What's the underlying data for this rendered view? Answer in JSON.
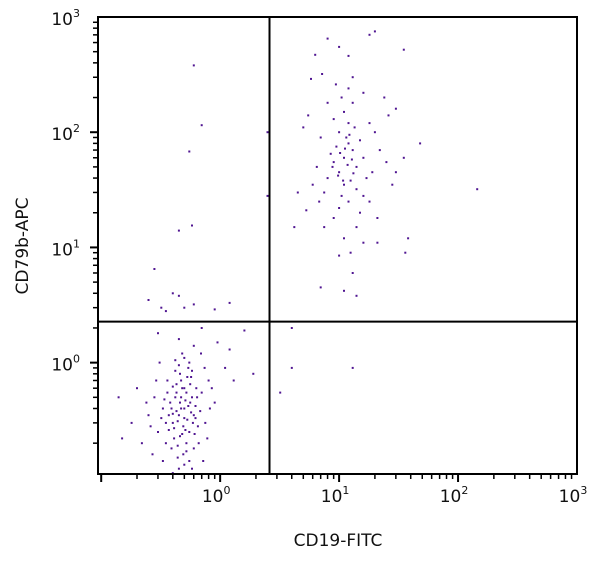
{
  "chart_data": {
    "type": "scatter",
    "title": "",
    "xlabel": "CD19-FITC",
    "ylabel": "CD79b-APC",
    "xscale": "log",
    "yscale": "log",
    "xlim": [
      0.094,
      1000
    ],
    "ylim": [
      0.108,
      1000
    ],
    "grid": false,
    "legend": "none",
    "point_color": "#4f1591",
    "x_ticks": [
      {
        "value": 1,
        "base": "10",
        "exp": "0"
      },
      {
        "value": 10,
        "base": "10",
        "exp": "1"
      },
      {
        "value": 100,
        "base": "10",
        "exp": "2"
      },
      {
        "value": 1000,
        "base": "10",
        "exp": "3"
      }
    ],
    "y_ticks": [
      {
        "value": 1,
        "base": "10",
        "exp": "0"
      },
      {
        "value": 10,
        "base": "10",
        "exp": "1"
      },
      {
        "value": 100,
        "base": "10",
        "exp": "2"
      },
      {
        "value": 1000,
        "base": "10",
        "exp": "3"
      }
    ],
    "quadrant_gates": {
      "x": 2.6,
      "y": 2.27
    },
    "points": [
      [
        0.45,
        0.35
      ],
      [
        0.5,
        0.4
      ],
      [
        0.4,
        0.3
      ],
      [
        0.55,
        0.25
      ],
      [
        0.42,
        0.5
      ],
      [
        0.48,
        0.6
      ],
      [
        0.38,
        0.45
      ],
      [
        0.6,
        0.35
      ],
      [
        0.52,
        0.2
      ],
      [
        0.44,
        0.15
      ],
      [
        0.35,
        0.3
      ],
      [
        0.58,
        0.5
      ],
      [
        0.47,
        0.7
      ],
      [
        0.41,
        0.22
      ],
      [
        0.53,
        0.32
      ],
      [
        0.62,
        0.42
      ],
      [
        0.36,
        0.55
      ],
      [
        0.49,
        0.28
      ],
      [
        0.56,
        0.65
      ],
      [
        0.43,
        0.38
      ],
      [
        0.5,
        0.13
      ],
      [
        0.39,
        0.18
      ],
      [
        0.65,
        0.28
      ],
      [
        0.46,
        0.8
      ],
      [
        0.54,
        0.9
      ],
      [
        0.33,
        0.4
      ],
      [
        0.7,
        0.55
      ],
      [
        0.3,
        0.25
      ],
      [
        0.6,
        0.18
      ],
      [
        0.45,
        0.12
      ],
      [
        0.57,
        0.75
      ],
      [
        0.4,
        0.62
      ],
      [
        0.51,
        0.47
      ],
      [
        0.37,
        0.35
      ],
      [
        0.63,
        0.6
      ],
      [
        0.48,
        0.24
      ],
      [
        0.42,
        0.85
      ],
      [
        0.55,
        1.0
      ],
      [
        0.5,
        1.1
      ],
      [
        0.35,
        0.2
      ],
      [
        0.68,
        0.38
      ],
      [
        0.28,
        0.5
      ],
      [
        0.75,
        0.3
      ],
      [
        0.25,
        0.35
      ],
      [
        0.8,
        0.7
      ],
      [
        0.22,
        0.2
      ],
      [
        0.9,
        0.45
      ],
      [
        1.1,
        0.9
      ],
      [
        1.3,
        0.7
      ],
      [
        0.2,
        0.6
      ],
      [
        0.18,
        0.3
      ],
      [
        0.15,
        0.22
      ],
      [
        0.14,
        0.5
      ],
      [
        0.95,
        1.5
      ],
      [
        1.2,
        1.3
      ],
      [
        0.6,
        1.4
      ],
      [
        0.45,
        1.6
      ],
      [
        0.3,
        1.8
      ],
      [
        0.7,
        2.0
      ],
      [
        1.6,
        1.9
      ],
      [
        1.9,
        0.8
      ],
      [
        0.72,
        0.14
      ],
      [
        0.33,
        0.14
      ],
      [
        0.58,
        0.12
      ],
      [
        0.46,
        0.45
      ],
      [
        0.52,
        0.55
      ],
      [
        0.41,
        0.27
      ],
      [
        0.59,
        0.3
      ],
      [
        0.44,
        0.19
      ],
      [
        0.5,
        0.33
      ],
      [
        0.47,
        0.5
      ],
      [
        0.39,
        0.4
      ],
      [
        0.54,
        0.42
      ],
      [
        0.61,
        0.24
      ],
      [
        0.43,
        0.65
      ],
      [
        0.49,
        0.16
      ],
      [
        0.57,
        0.37
      ],
      [
        0.37,
        0.26
      ],
      [
        0.53,
        0.75
      ],
      [
        0.45,
        0.95
      ],
      [
        0.4,
        0.11
      ],
      [
        0.55,
        0.14
      ],
      [
        0.64,
        0.5
      ],
      [
        0.32,
        0.33
      ],
      [
        0.66,
        0.2
      ],
      [
        0.48,
        1.2
      ],
      [
        0.42,
        1.05
      ],
      [
        0.58,
        0.85
      ],
      [
        0.36,
        0.7
      ],
      [
        0.51,
        0.26
      ],
      [
        0.44,
        0.31
      ],
      [
        0.46,
        0.23
      ],
      [
        0.5,
        0.6
      ],
      [
        0.56,
        0.45
      ],
      [
        0.4,
        0.36
      ],
      [
        0.62,
        0.33
      ],
      [
        0.34,
        0.48
      ],
      [
        0.52,
        0.17
      ],
      [
        0.47,
        0.4
      ],
      [
        0.43,
        0.55
      ],
      [
        0.27,
        0.16
      ],
      [
        0.78,
        0.22
      ],
      [
        0.85,
        0.6
      ],
      [
        0.24,
        0.45
      ],
      [
        0.74,
        0.9
      ],
      [
        0.29,
        0.7
      ],
      [
        0.31,
        1.0
      ],
      [
        0.69,
        1.2
      ],
      [
        0.26,
        0.28
      ],
      [
        0.82,
        0.4
      ],
      [
        0.25,
        3.5
      ],
      [
        0.28,
        6.5
      ],
      [
        0.4,
        4
      ],
      [
        0.5,
        3
      ],
      [
        0.6,
        3.2
      ],
      [
        1.2,
        3.3
      ],
      [
        0.35,
        2.8
      ],
      [
        0.9,
        2.9
      ],
      [
        0.32,
        3.0
      ],
      [
        0.45,
        3.8
      ],
      [
        0.6,
        380
      ],
      [
        0.7,
        115
      ],
      [
        0.55,
        68
      ],
      [
        0.45,
        14
      ],
      [
        0.58,
        15.5
      ],
      [
        2.5,
        100
      ],
      [
        2.5,
        28
      ],
      [
        4,
        2
      ],
      [
        4,
        0.9
      ],
      [
        13,
        0.9
      ],
      [
        3.2,
        0.55
      ],
      [
        11,
        60
      ],
      [
        10,
        45
      ],
      [
        12,
        80
      ],
      [
        9,
        55
      ],
      [
        13,
        70
      ],
      [
        11,
        35
      ],
      [
        10,
        100
      ],
      [
        12,
        120
      ],
      [
        14,
        50
      ],
      [
        8,
        40
      ],
      [
        9.5,
        75
      ],
      [
        11.5,
        90
      ],
      [
        13.5,
        110
      ],
      [
        10.5,
        28
      ],
      [
        12.5,
        38
      ],
      [
        8.5,
        65
      ],
      [
        15,
        85
      ],
      [
        7.5,
        30
      ],
      [
        11,
        150
      ],
      [
        13,
        180
      ],
      [
        9,
        130
      ],
      [
        16,
        60
      ],
      [
        10,
        22
      ],
      [
        12,
        25
      ],
      [
        14,
        32
      ],
      [
        7,
        90
      ],
      [
        6.5,
        50
      ],
      [
        17,
        40
      ],
      [
        18,
        120
      ],
      [
        10.5,
        200
      ],
      [
        12,
        240
      ],
      [
        13,
        300
      ],
      [
        8,
        180
      ],
      [
        16,
        220
      ],
      [
        20,
        100
      ],
      [
        22,
        70
      ],
      [
        19,
        45
      ],
      [
        6,
        35
      ],
      [
        5.5,
        140
      ],
      [
        7.5,
        15
      ],
      [
        9,
        18
      ],
      [
        11,
        12
      ],
      [
        14,
        15
      ],
      [
        16,
        11
      ],
      [
        12.5,
        9
      ],
      [
        13,
        6
      ],
      [
        10,
        8.5
      ],
      [
        15,
        20
      ],
      [
        18,
        25
      ],
      [
        21,
        18
      ],
      [
        25,
        55
      ],
      [
        30,
        45
      ],
      [
        28,
        35
      ],
      [
        35,
        60
      ],
      [
        38,
        12
      ],
      [
        36,
        9
      ],
      [
        48,
        80
      ],
      [
        145,
        32
      ],
      [
        26,
        140
      ],
      [
        24,
        200
      ],
      [
        30,
        160
      ],
      [
        35,
        520
      ],
      [
        18,
        700
      ],
      [
        20,
        750
      ],
      [
        8,
        650
      ],
      [
        10,
        550
      ],
      [
        6.3,
        470
      ],
      [
        12,
        460
      ],
      [
        7.2,
        320
      ],
      [
        5.8,
        290
      ],
      [
        9.4,
        260
      ],
      [
        11.8,
        52
      ],
      [
        10.2,
        66
      ],
      [
        12.8,
        58
      ],
      [
        9.8,
        42
      ],
      [
        11.2,
        72
      ],
      [
        13.2,
        44
      ],
      [
        8.8,
        50
      ],
      [
        10.8,
        38
      ],
      [
        12.2,
        95
      ],
      [
        6.8,
        25
      ],
      [
        16,
        28
      ],
      [
        4.5,
        30
      ],
      [
        4.2,
        15
      ],
      [
        5,
        110
      ],
      [
        5.3,
        21
      ],
      [
        21,
        11
      ],
      [
        14,
        3.8
      ],
      [
        11,
        4.2
      ],
      [
        7,
        4.5
      ]
    ]
  }
}
